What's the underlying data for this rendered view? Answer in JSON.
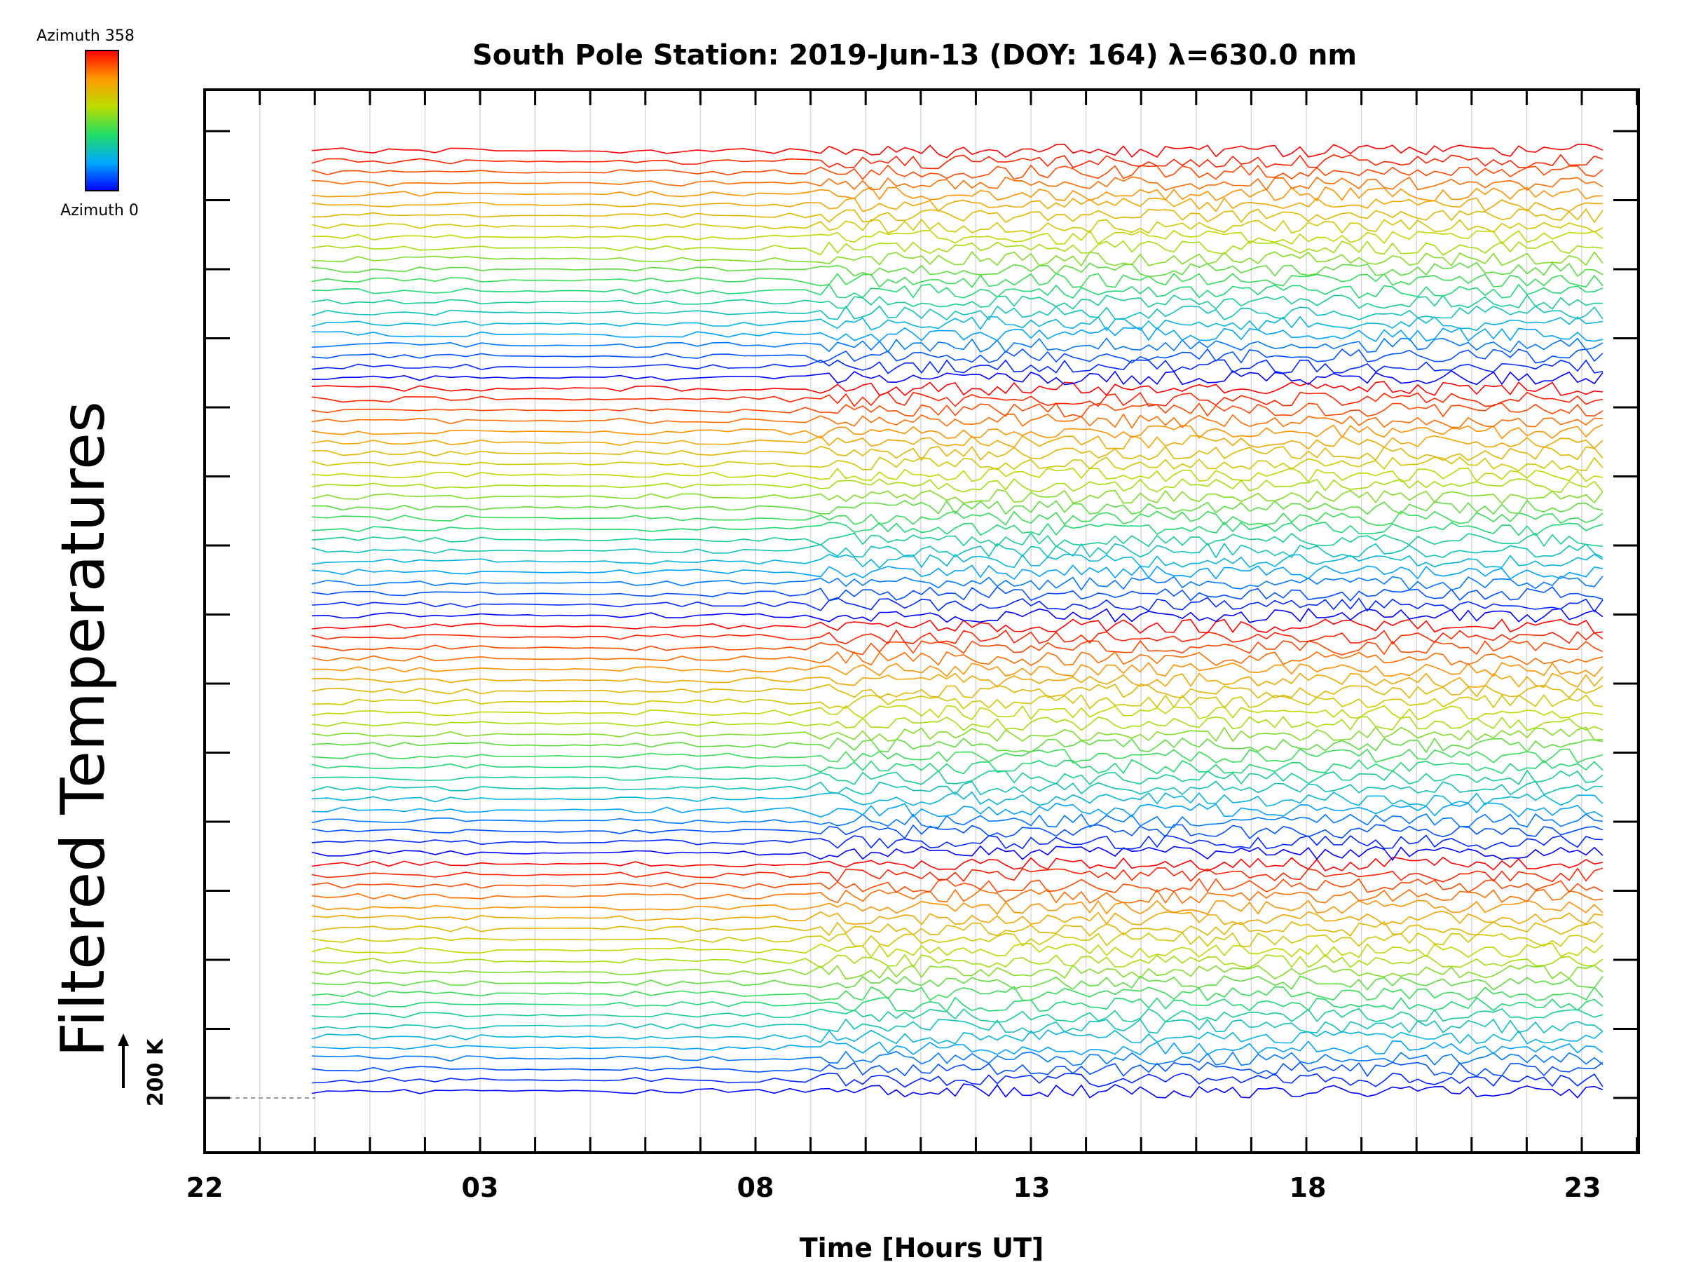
{
  "chart_data": {
    "type": "line",
    "title": "South Pole Station: 2019-Jun-13 (DOY: 164) λ=630.0 nm",
    "xlabel": "Time [Hours UT]",
    "ylabel": "Filtered Temperatures",
    "x_tick_labels": [
      "22",
      "03",
      "08",
      "13",
      "18",
      "23"
    ],
    "x_range_hours_ut": [
      22,
      23.3
    ],
    "colorbar": {
      "top_label": "Azimuth 358",
      "bottom_label": "Azimuth 0",
      "colors": [
        "#0000ff",
        "#00aaff",
        "#22dd66",
        "#bbdd00",
        "#ff9900",
        "#ff0000"
      ]
    },
    "scale_bar_label": "200 K",
    "series_groups": 4,
    "traces_per_group": 22,
    "grid": true,
    "legend_position": "top-left"
  }
}
